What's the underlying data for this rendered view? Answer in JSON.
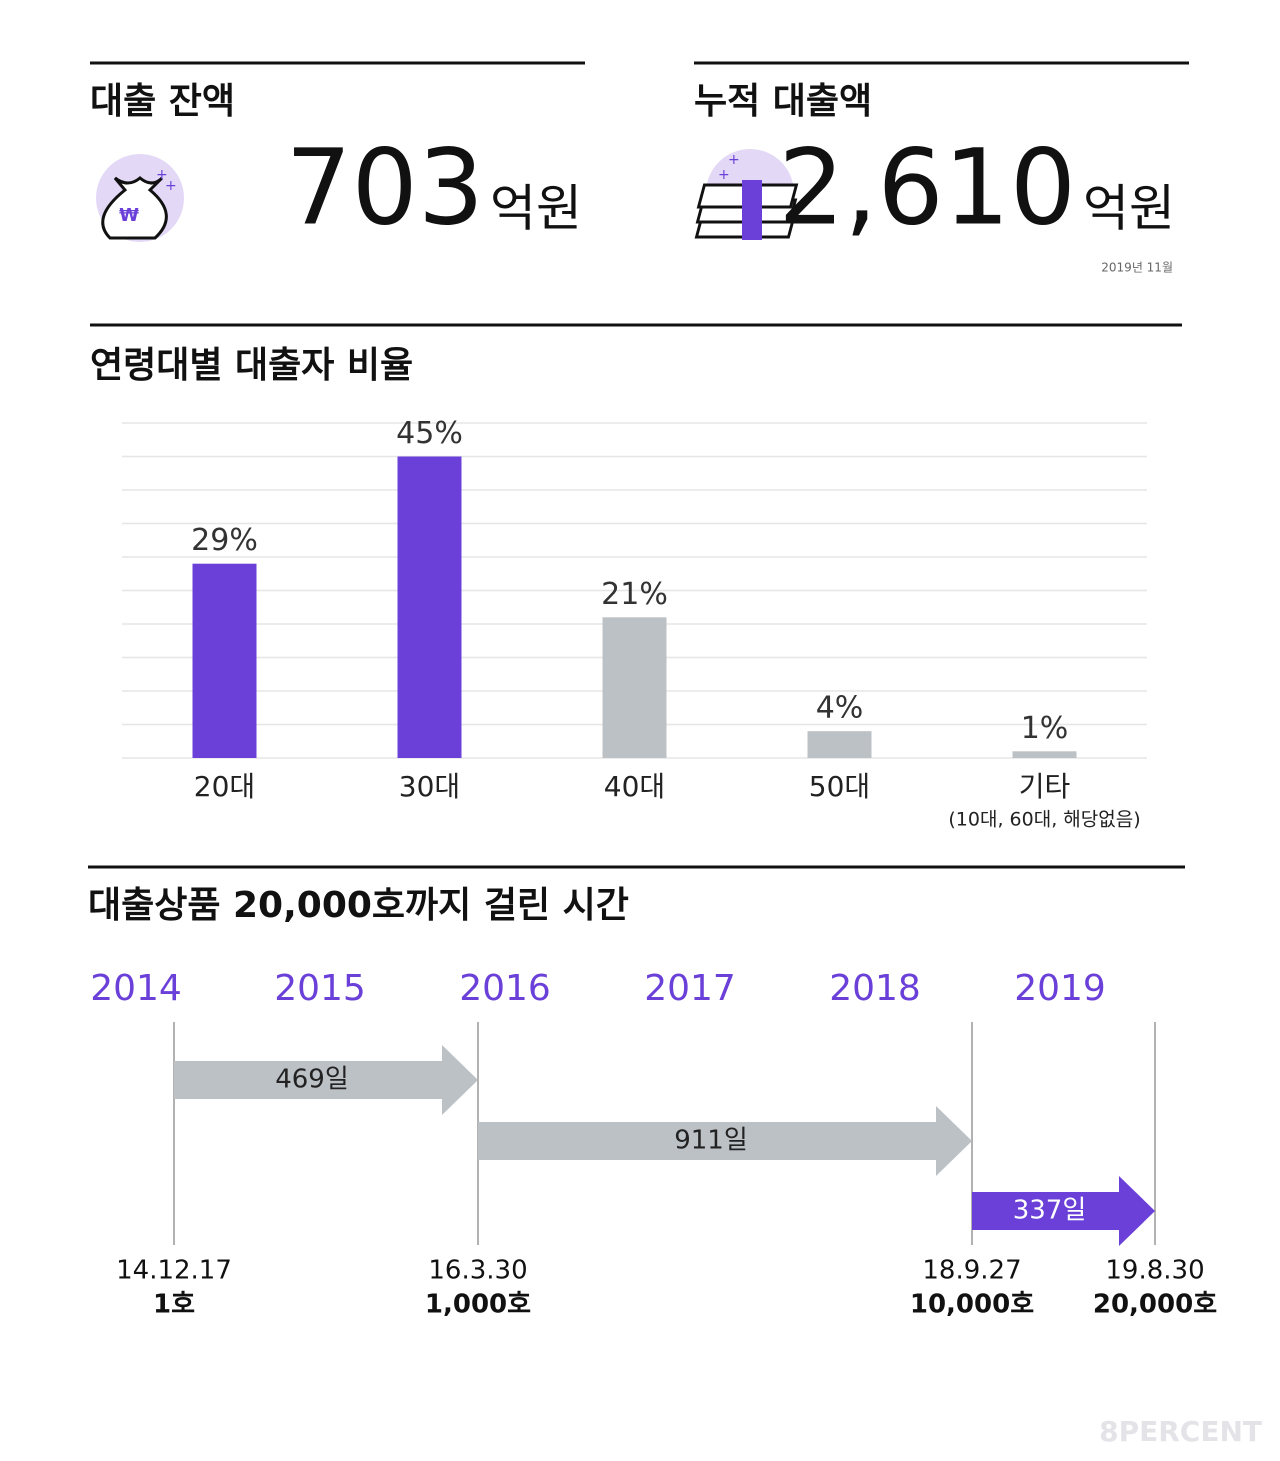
{
  "stats": [
    {
      "title": "대출 잔액",
      "value": "703",
      "unit": "억원"
    },
    {
      "title": "누적 대출액",
      "value": "2,610",
      "unit": "억원",
      "note": "2019년 11월"
    }
  ],
  "chart_data": {
    "type": "bar",
    "title": "연령대별 대출자 비율",
    "categories": [
      "20대",
      "30대",
      "40대",
      "50대",
      "기타"
    ],
    "category_note": "(10대, 60대, 해당없음)",
    "values": [
      29,
      45,
      21,
      4,
      1
    ],
    "value_labels": [
      "29%",
      "45%",
      "21%",
      "4%",
      "1%"
    ],
    "colors": [
      "#6a40d9",
      "#6a40d9",
      "#bcc1c6",
      "#bcc1c6",
      "#bcc1c6"
    ],
    "ylim": [
      0,
      50
    ],
    "yticks": [
      0,
      5,
      10,
      15,
      20,
      25,
      30,
      35,
      40,
      45,
      50
    ],
    "grid": true
  },
  "timeline": {
    "title": "대출상품 20,000호까지 걸린 시간",
    "years": [
      "2014",
      "2015",
      "2016",
      "2017",
      "2018",
      "2019"
    ],
    "milestones": [
      {
        "date": "14.12.17",
        "label": "1호"
      },
      {
        "date": "16.3.30",
        "label": "1,000호"
      },
      {
        "date": "18.9.27",
        "label": "10,000호"
      },
      {
        "date": "19.8.30",
        "label": "20,000호"
      }
    ],
    "spans": [
      "469일",
      "911일",
      "337일"
    ]
  },
  "footer": "8PERCENT"
}
